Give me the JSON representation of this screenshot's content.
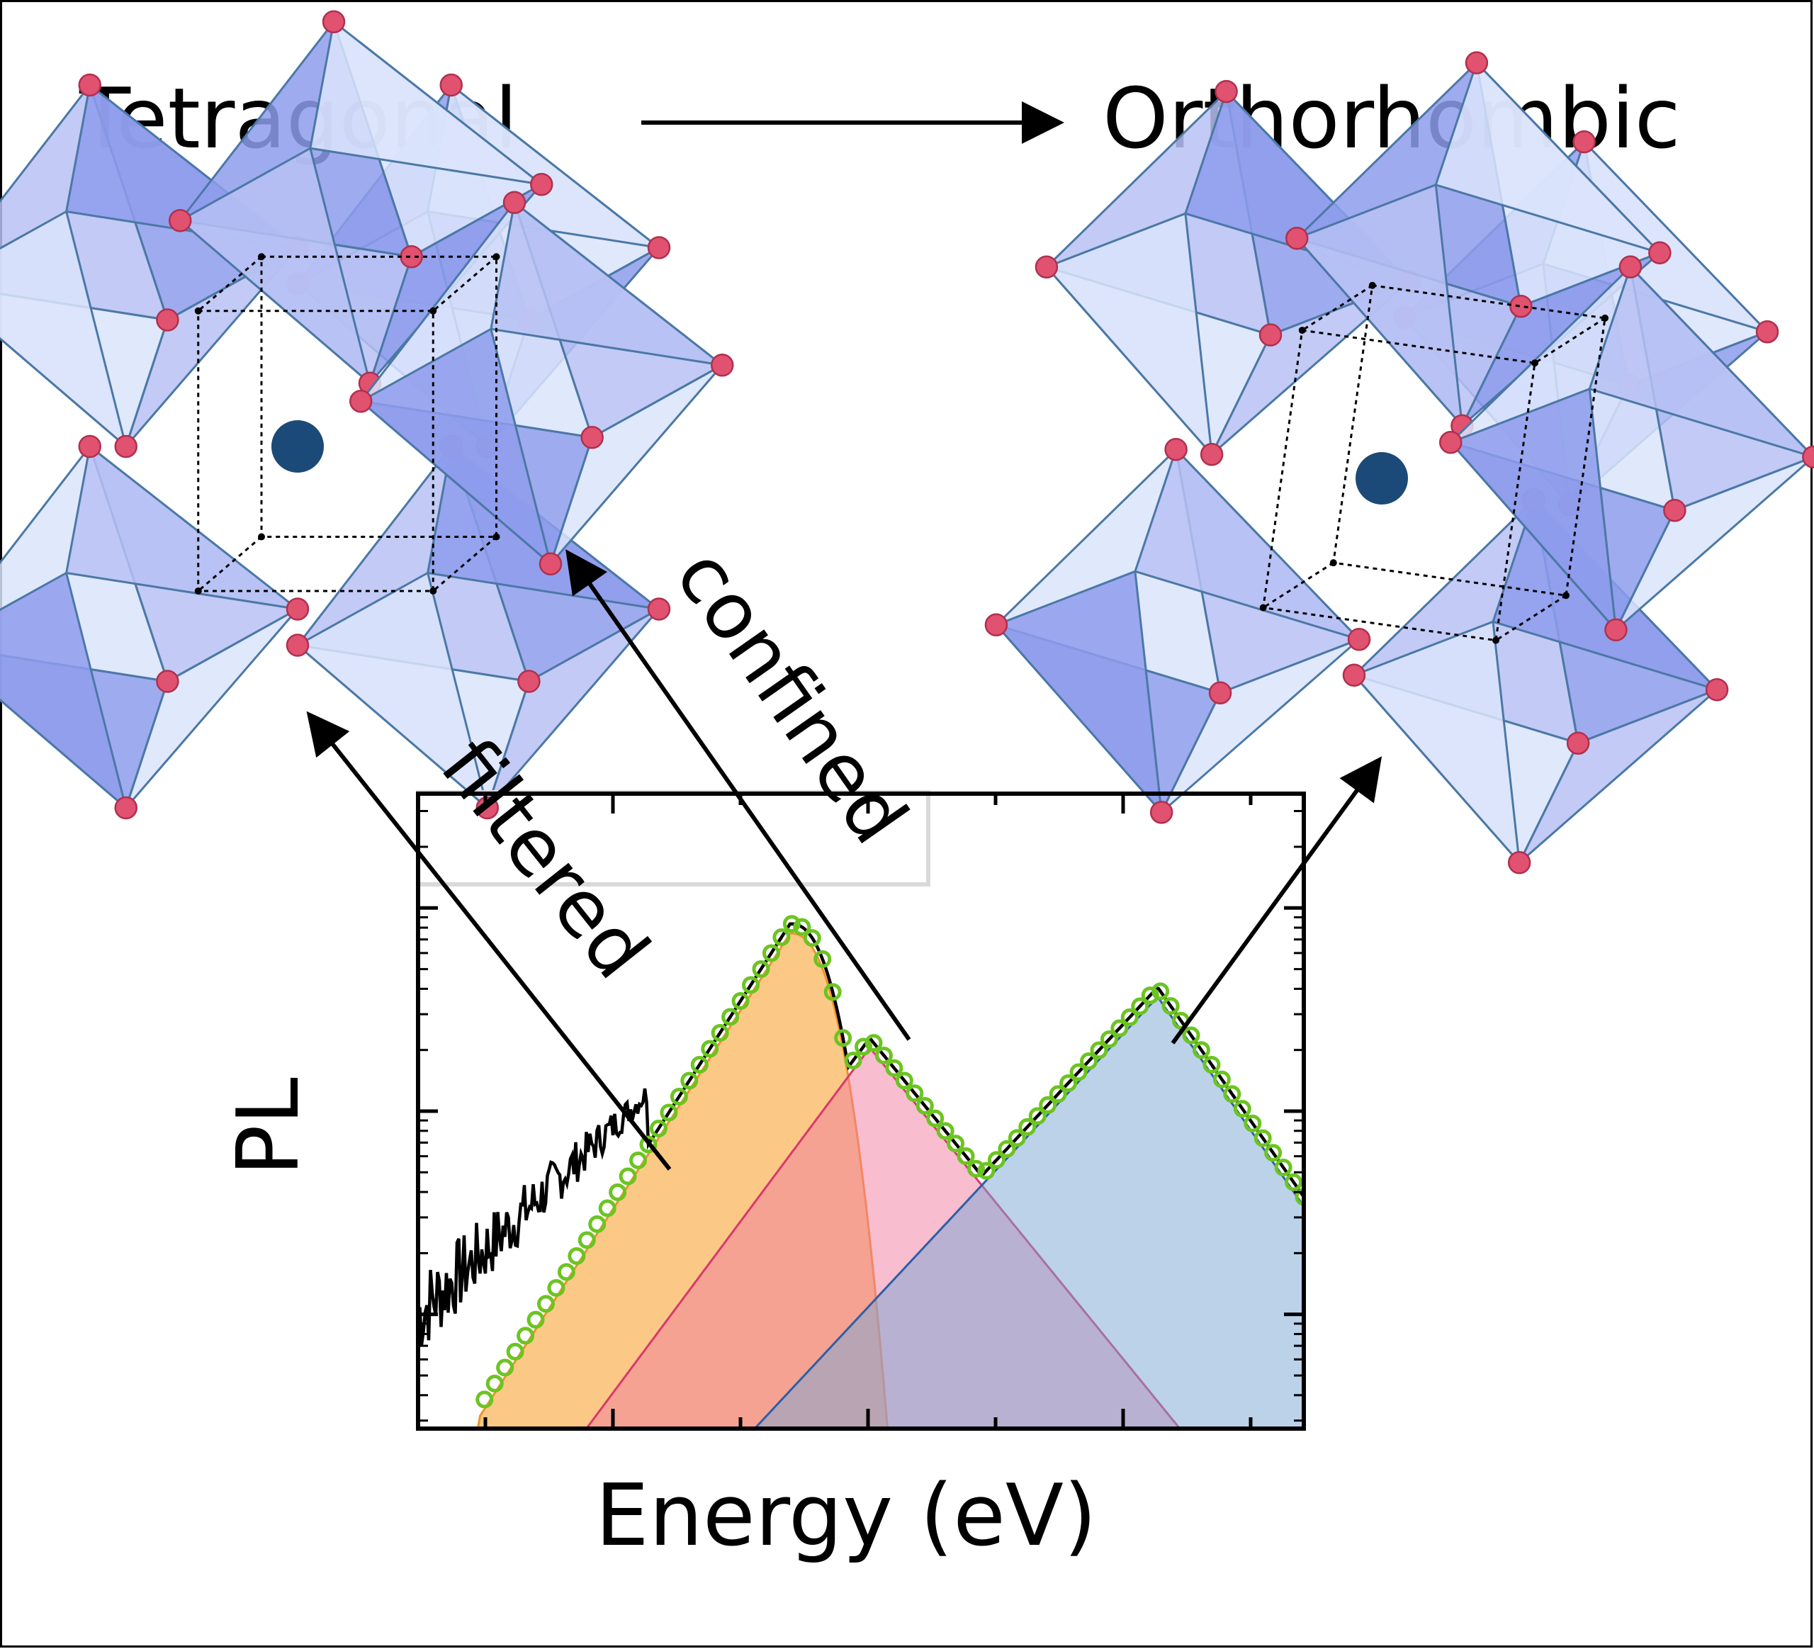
{
  "labels": {
    "left_phase": "Tetragonal",
    "right_phase": "Orthorhombic",
    "arrow_filtered": "filtered",
    "arrow_confined": "confined",
    "x_axis": "Energy (eV)",
    "y_axis": "PL"
  },
  "colors": {
    "frame": "#000000",
    "octahedron_fill": "#b7c1f3",
    "octahedron_dark": "#8e9cec",
    "octahedron_light": "#dbe4fb",
    "octahedron_edge": "#4b78a6",
    "oxygen_atom": "#e05270",
    "oxygen_atom_edge": "#b0304e",
    "center_atom": "#1c4a78",
    "peak_orange_fill": "#fbc67e",
    "peak_orange_line": "#f0922a",
    "peak_pink_fill": "#f6a8bd",
    "peak_pink_line": "#d63a6e",
    "peak_blue_fill": "#a9c4e3",
    "peak_blue_line": "#2d5fa8",
    "fit_circles": "#6cc421",
    "data_line": "#000000"
  },
  "chart_data": {
    "type": "area",
    "xlabel": "Energy (eV)",
    "ylabel": "PL",
    "y_scale": "log",
    "tick_labels_shown": false,
    "grid": false,
    "legend": "none",
    "series": [
      {
        "role": "component-peak",
        "color": "orange",
        "description_level": "lowest-energy peak, max height highest"
      },
      {
        "role": "component-peak",
        "color": "pink",
        "description_level": "middle-energy peak"
      },
      {
        "role": "component-peak",
        "color": "blue",
        "description_level": "highest-energy peak"
      },
      {
        "role": "measured-data",
        "color": "black",
        "style": "noisy line"
      },
      {
        "role": "fit",
        "color": "green",
        "style": "open circles"
      }
    ]
  }
}
